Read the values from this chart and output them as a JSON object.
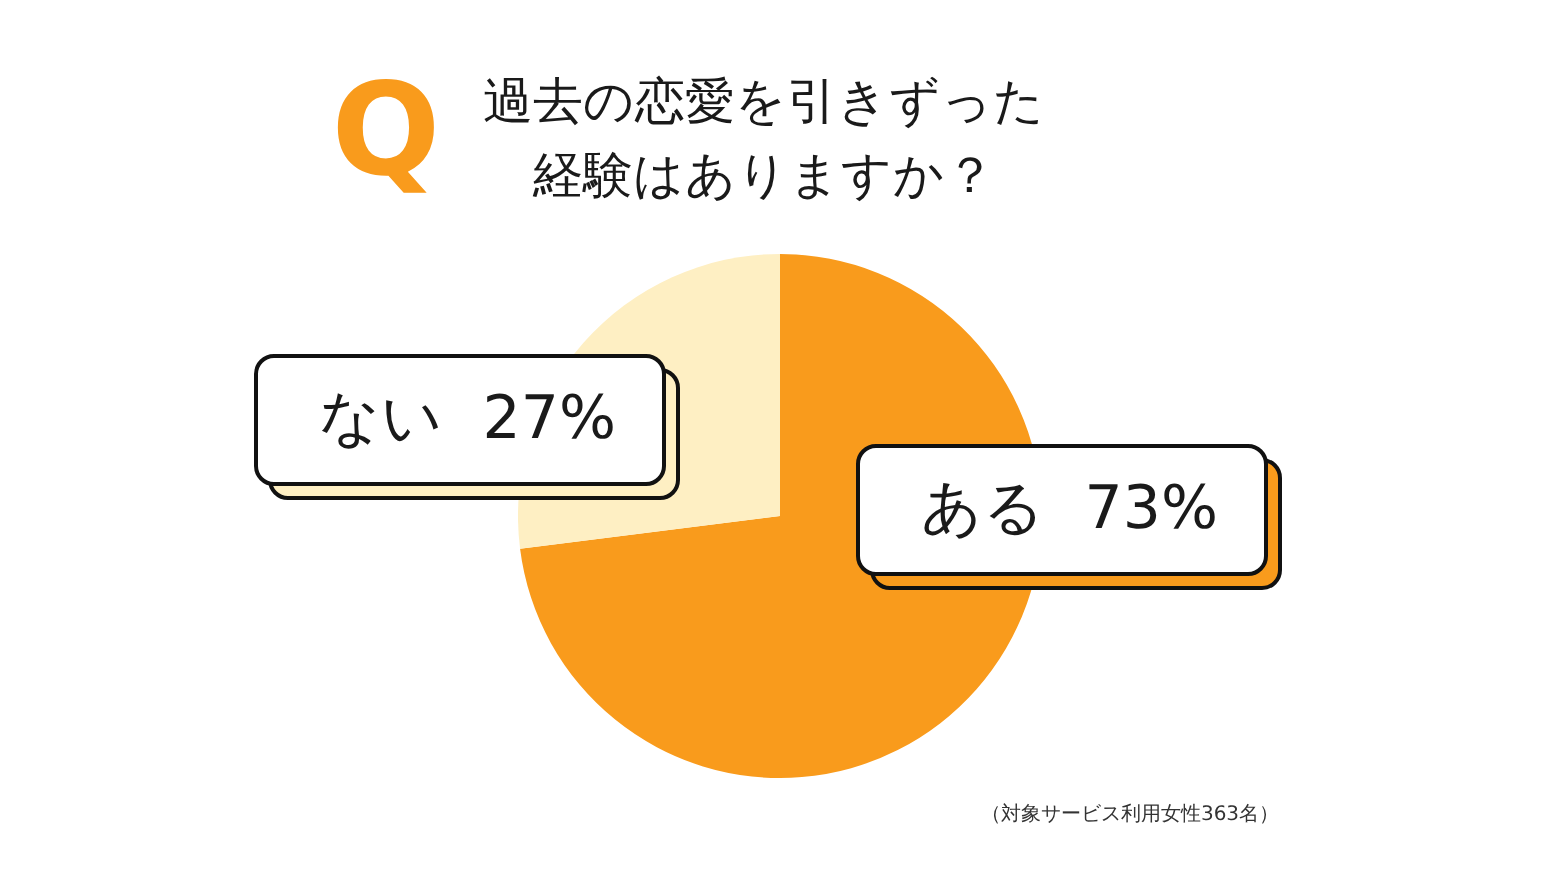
{
  "chart_data": {
    "type": "pie",
    "title": "過去の恋愛を引きずった経験はありますか？",
    "categories": [
      "ある",
      "ない"
    ],
    "values": [
      73,
      27
    ],
    "colors": [
      "#f99b1c",
      "#feefc3"
    ],
    "value_labels": [
      "73%",
      "27%"
    ],
    "annotations": [
      "Q",
      "（対象サービス利用女性363名）"
    ]
  }
}
